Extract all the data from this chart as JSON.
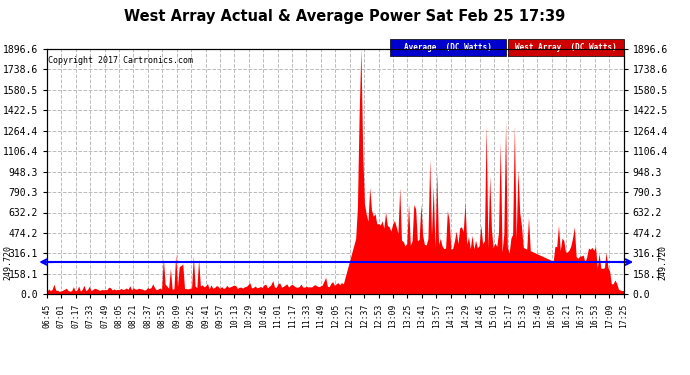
{
  "title": "West Array Actual & Average Power Sat Feb 25 17:39",
  "copyright": "Copyright 2017 Cartronics.com",
  "legend_labels": [
    "Average  (DC Watts)",
    "West Array  (DC Watts)"
  ],
  "legend_colors": [
    "#0000cc",
    "#cc0000"
  ],
  "average_value": 249.72,
  "y_max": 1896.6,
  "y_min": 0.0,
  "y_ticks": [
    0.0,
    158.1,
    316.1,
    474.2,
    632.2,
    790.3,
    948.3,
    1106.4,
    1264.4,
    1422.5,
    1580.5,
    1738.6,
    1896.6
  ],
  "x_tick_labels": [
    "06:45",
    "07:01",
    "07:17",
    "07:33",
    "07:49",
    "08:05",
    "08:21",
    "08:37",
    "08:53",
    "09:09",
    "09:25",
    "09:41",
    "09:57",
    "10:13",
    "10:29",
    "10:45",
    "11:01",
    "11:17",
    "11:33",
    "11:49",
    "12:05",
    "12:21",
    "12:37",
    "12:53",
    "13:09",
    "13:25",
    "13:41",
    "13:57",
    "14:13",
    "14:29",
    "14:45",
    "15:01",
    "15:17",
    "15:33",
    "15:49",
    "16:05",
    "16:21",
    "16:37",
    "16:53",
    "17:09",
    "17:25"
  ],
  "background_color": "#ffffff",
  "plot_bg_color": "#ffffff",
  "grid_color": "#bbbbbb",
  "bar_color": "#ff0000",
  "average_line_color": "#0000ff",
  "figsize": [
    6.9,
    3.75
  ],
  "dpi": 100
}
